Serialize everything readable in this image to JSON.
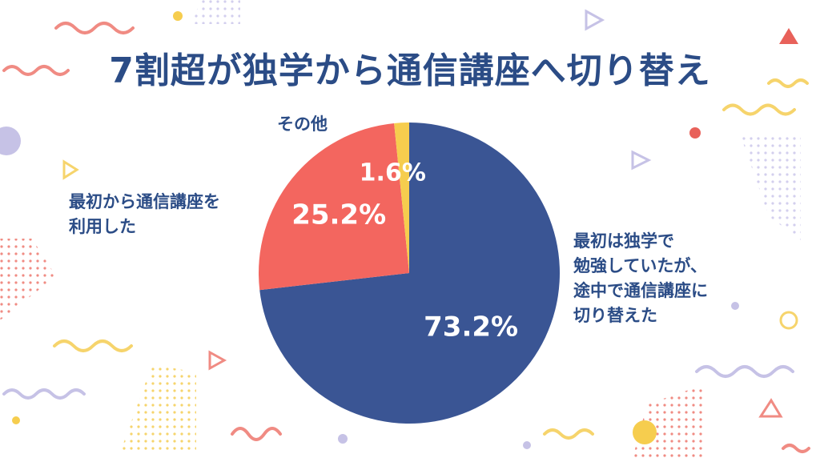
{
  "title": "7割超が独学から通信講座へ切り替え",
  "colors": {
    "title": "#2b4c86",
    "label": "#2b4c86",
    "decor_red": "#e8615a",
    "decor_yellow": "#f6cd4e",
    "decor_purple": "#c6c2e6"
  },
  "chart_data": {
    "type": "pie",
    "title": "7割超が独学から通信講座へ切り替え",
    "slices": [
      {
        "label": "最初は独学で\n勉強していたが、\n途中で通信講座に\n切り替えた",
        "value": 73.2,
        "display": "73.2%",
        "color": "#3a5594"
      },
      {
        "label": "最初から通信講座を\n利用した",
        "value": 25.2,
        "display": "25.2%",
        "color": "#f3665f"
      },
      {
        "label": "その他",
        "value": 1.6,
        "display": "1.6%",
        "color": "#f6cd4e"
      }
    ],
    "start": "12 o'clock",
    "direction": "clockwise",
    "legend": "none"
  }
}
